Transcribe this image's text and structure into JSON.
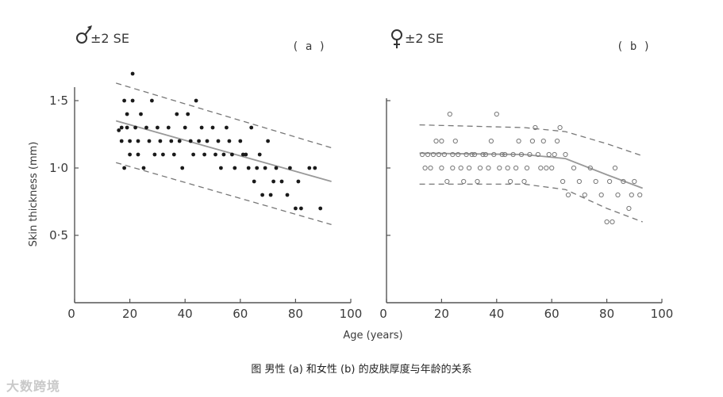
{
  "chart_data": [
    {
      "type": "scatter",
      "panel_tag": "( a )",
      "legend": "±2 SE",
      "legend_symbol": "male-symbol-icon",
      "xlabel": "Age (years)",
      "ylabel": "Skin thickness (mm)",
      "xlim": [
        0,
        100
      ],
      "ylim": [
        0,
        1.8
      ],
      "x_ticks": [
        "0",
        "20",
        "40",
        "60",
        "80",
        "100"
      ],
      "y_ticks": [
        "0·5",
        "1·0",
        "1·5"
      ],
      "y_tick_values": [
        0.5,
        1.0,
        1.5
      ],
      "marker": "filled",
      "points": [
        [
          16,
          1.28
        ],
        [
          17,
          1.2
        ],
        [
          17,
          1.3
        ],
        [
          18,
          1.5
        ],
        [
          18,
          1.0
        ],
        [
          19,
          1.3
        ],
        [
          19,
          1.4
        ],
        [
          20,
          1.2
        ],
        [
          20,
          1.1
        ],
        [
          21,
          1.5
        ],
        [
          21,
          1.7
        ],
        [
          22,
          1.3
        ],
        [
          23,
          1.2
        ],
        [
          23,
          1.1
        ],
        [
          24,
          1.4
        ],
        [
          25,
          1.0
        ],
        [
          26,
          1.3
        ],
        [
          27,
          1.2
        ],
        [
          28,
          1.5
        ],
        [
          29,
          1.1
        ],
        [
          30,
          1.3
        ],
        [
          31,
          1.2
        ],
        [
          32,
          1.1
        ],
        [
          34,
          1.3
        ],
        [
          35,
          1.2
        ],
        [
          36,
          1.1
        ],
        [
          37,
          1.4
        ],
        [
          38,
          1.2
        ],
        [
          39,
          1.0
        ],
        [
          40,
          1.3
        ],
        [
          41,
          1.4
        ],
        [
          42,
          1.2
        ],
        [
          43,
          1.1
        ],
        [
          44,
          1.5
        ],
        [
          45,
          1.2
        ],
        [
          46,
          1.3
        ],
        [
          47,
          1.1
        ],
        [
          48,
          1.2
        ],
        [
          50,
          1.3
        ],
        [
          51,
          1.1
        ],
        [
          52,
          1.2
        ],
        [
          53,
          1.0
        ],
        [
          54,
          1.1
        ],
        [
          55,
          1.3
        ],
        [
          56,
          1.2
        ],
        [
          57,
          1.1
        ],
        [
          58,
          1.0
        ],
        [
          60,
          1.2
        ],
        [
          61,
          1.1
        ],
        [
          62,
          1.1
        ],
        [
          63,
          1.0
        ],
        [
          64,
          1.3
        ],
        [
          65,
          0.9
        ],
        [
          66,
          1.0
        ],
        [
          67,
          1.1
        ],
        [
          68,
          0.8
        ],
        [
          69,
          1.0
        ],
        [
          70,
          1.2
        ],
        [
          71,
          0.8
        ],
        [
          72,
          0.9
        ],
        [
          73,
          1.0
        ],
        [
          75,
          0.9
        ],
        [
          77,
          0.8
        ],
        [
          78,
          1.0
        ],
        [
          80,
          0.7
        ],
        [
          81,
          0.9
        ],
        [
          82,
          0.7
        ],
        [
          85,
          1.0
        ],
        [
          87,
          1.0
        ],
        [
          89,
          0.7
        ]
      ],
      "trend_line": [
        [
          15,
          1.35
        ],
        [
          93,
          0.9
        ]
      ],
      "se_upper": [
        [
          15,
          1.63
        ],
        [
          93,
          1.15
        ]
      ],
      "se_lower": [
        [
          15,
          1.04
        ],
        [
          93,
          0.58
        ]
      ]
    },
    {
      "type": "scatter",
      "panel_tag": "( b )",
      "legend": "±2 SE",
      "legend_symbol": "female-symbol-icon",
      "xlabel": "",
      "ylabel": "",
      "xlim": [
        0,
        100
      ],
      "ylim": [
        0,
        1.8
      ],
      "x_ticks": [
        "0",
        "20",
        "40",
        "60",
        "80",
        "100"
      ],
      "marker": "open",
      "points": [
        [
          13,
          1.1
        ],
        [
          14,
          1.0
        ],
        [
          15,
          1.1
        ],
        [
          16,
          1.0
        ],
        [
          17,
          1.1
        ],
        [
          18,
          1.2
        ],
        [
          19,
          1.1
        ],
        [
          20,
          1.0
        ],
        [
          20,
          1.2
        ],
        [
          21,
          1.1
        ],
        [
          22,
          0.9
        ],
        [
          23,
          1.4
        ],
        [
          24,
          1.0
        ],
        [
          24,
          1.1
        ],
        [
          25,
          1.2
        ],
        [
          26,
          1.1
        ],
        [
          27,
          1.0
        ],
        [
          28,
          0.9
        ],
        [
          29,
          1.1
        ],
        [
          30,
          1.0
        ],
        [
          31,
          1.1
        ],
        [
          32,
          1.1
        ],
        [
          33,
          0.9
        ],
        [
          34,
          1.0
        ],
        [
          35,
          1.1
        ],
        [
          36,
          1.1
        ],
        [
          37,
          1.0
        ],
        [
          38,
          1.2
        ],
        [
          39,
          1.1
        ],
        [
          40,
          1.4
        ],
        [
          41,
          1.0
        ],
        [
          42,
          1.1
        ],
        [
          43,
          1.1
        ],
        [
          44,
          1.0
        ],
        [
          45,
          0.9
        ],
        [
          46,
          1.1
        ],
        [
          47,
          1.0
        ],
        [
          48,
          1.2
        ],
        [
          49,
          1.1
        ],
        [
          50,
          0.9
        ],
        [
          51,
          1.0
        ],
        [
          52,
          1.1
        ],
        [
          53,
          1.2
        ],
        [
          54,
          1.3
        ],
        [
          55,
          1.1
        ],
        [
          56,
          1.0
        ],
        [
          57,
          1.2
        ],
        [
          58,
          1.0
        ],
        [
          59,
          1.1
        ],
        [
          60,
          1.0
        ],
        [
          61,
          1.1
        ],
        [
          62,
          1.2
        ],
        [
          63,
          1.3
        ],
        [
          64,
          0.9
        ],
        [
          65,
          1.1
        ],
        [
          66,
          0.8
        ],
        [
          68,
          1.0
        ],
        [
          70,
          0.9
        ],
        [
          72,
          0.8
        ],
        [
          74,
          1.0
        ],
        [
          76,
          0.9
        ],
        [
          78,
          0.8
        ],
        [
          80,
          0.6
        ],
        [
          81,
          0.9
        ],
        [
          82,
          0.6
        ],
        [
          83,
          1.0
        ],
        [
          84,
          0.8
        ],
        [
          86,
          0.9
        ],
        [
          88,
          0.7
        ],
        [
          89,
          0.8
        ],
        [
          90,
          0.9
        ],
        [
          92,
          0.8
        ]
      ],
      "trend_line": [
        [
          12,
          1.11
        ],
        [
          50,
          1.1
        ],
        [
          65,
          1.07
        ],
        [
          80,
          0.95
        ],
        [
          93,
          0.85
        ]
      ],
      "se_upper": [
        [
          12,
          1.32
        ],
        [
          50,
          1.3
        ],
        [
          65,
          1.27
        ],
        [
          80,
          1.18
        ],
        [
          93,
          1.09
        ]
      ],
      "se_lower": [
        [
          12,
          0.88
        ],
        [
          50,
          0.88
        ],
        [
          65,
          0.84
        ],
        [
          80,
          0.7
        ],
        [
          93,
          0.6
        ]
      ]
    }
  ],
  "caption": "图 男性 (a) 和女性 (b) 的皮肤厚度与年龄的关系",
  "watermark_text": "大数跨境"
}
